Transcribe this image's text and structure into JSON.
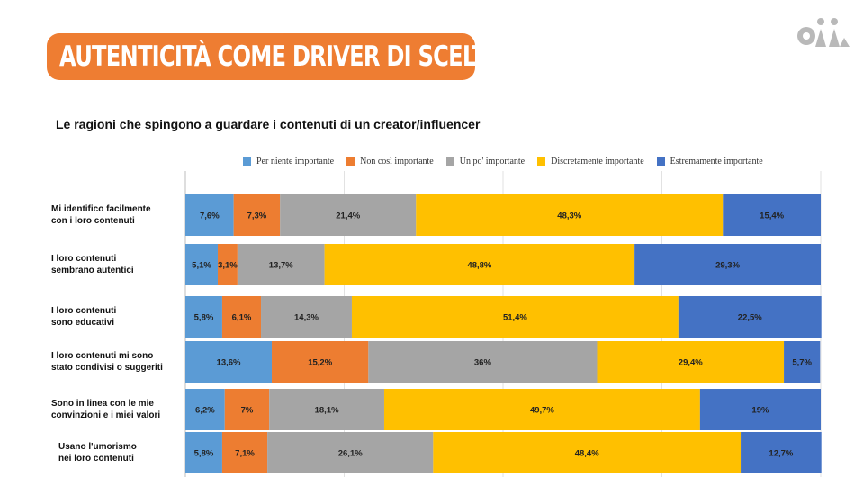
{
  "header": {
    "title": "AUTENTICITÀ COME DRIVER DI SCELTA",
    "accent_color": "#ee7d32"
  },
  "logo": {
    "icon": "oii-logo-icon",
    "color": "#b9b9b9"
  },
  "subtitle": "Le ragioni che spingono a guardare i contenuti di un creator/influencer",
  "chart_data": {
    "type": "bar",
    "orientation": "horizontal",
    "stacked": true,
    "xlim": [
      0,
      100
    ],
    "grid": true,
    "legend": "top",
    "categories": [
      [
        "Mi identifico facilmente",
        "con i loro contenuti"
      ],
      [
        "I loro contenuti",
        "sembrano autentici"
      ],
      [
        "I loro contenuti",
        "sono educativi"
      ],
      [
        "I loro contenuti mi sono",
        "stato condivisi o suggeriti"
      ],
      [
        "Sono in linea con le mie",
        "convinzioni e i miei valori"
      ],
      [
        "Usano l'umorismo",
        "nei loro contenuti"
      ]
    ],
    "series": [
      {
        "name": "Per niente importante",
        "color": "#5b9bd5",
        "values": [
          7.6,
          5.1,
          5.8,
          13.6,
          6.2,
          5.8
        ],
        "labels": [
          "7,6%",
          "5,1%",
          "5,8%",
          "13,6%",
          "6,2%",
          "5,8%"
        ]
      },
      {
        "name": "Non così importante",
        "color": "#ed7d31",
        "values": [
          7.3,
          3.1,
          6.1,
          15.2,
          7,
          7.1
        ],
        "labels": [
          "7,3%",
          "3,1%",
          "6,1%",
          "15,2%",
          "7%",
          "7,1%"
        ]
      },
      {
        "name": "Un po' importante",
        "color": "#a5a5a5",
        "values": [
          21.4,
          13.7,
          14.3,
          36,
          18.1,
          26.1
        ],
        "labels": [
          "21,4%",
          "13,7%",
          "14,3%",
          "36%",
          "18,1%",
          "26,1%"
        ]
      },
      {
        "name": "Discretamente importante",
        "color": "#ffc000",
        "values": [
          48.3,
          48.8,
          51.4,
          29.4,
          49.7,
          48.4
        ],
        "labels": [
          "48,3%",
          "48,8%",
          "51,4%",
          "29,4%",
          "49,7%",
          "48,4%"
        ]
      },
      {
        "name": "Estremamente importante",
        "color": "#4472c4",
        "values": [
          15.4,
          29.3,
          22.5,
          5.7,
          19,
          12.7
        ],
        "labels": [
          "15,4%",
          "29,3%",
          "22,5%",
          "5,7%",
          "19%",
          "12,7%"
        ]
      }
    ]
  }
}
